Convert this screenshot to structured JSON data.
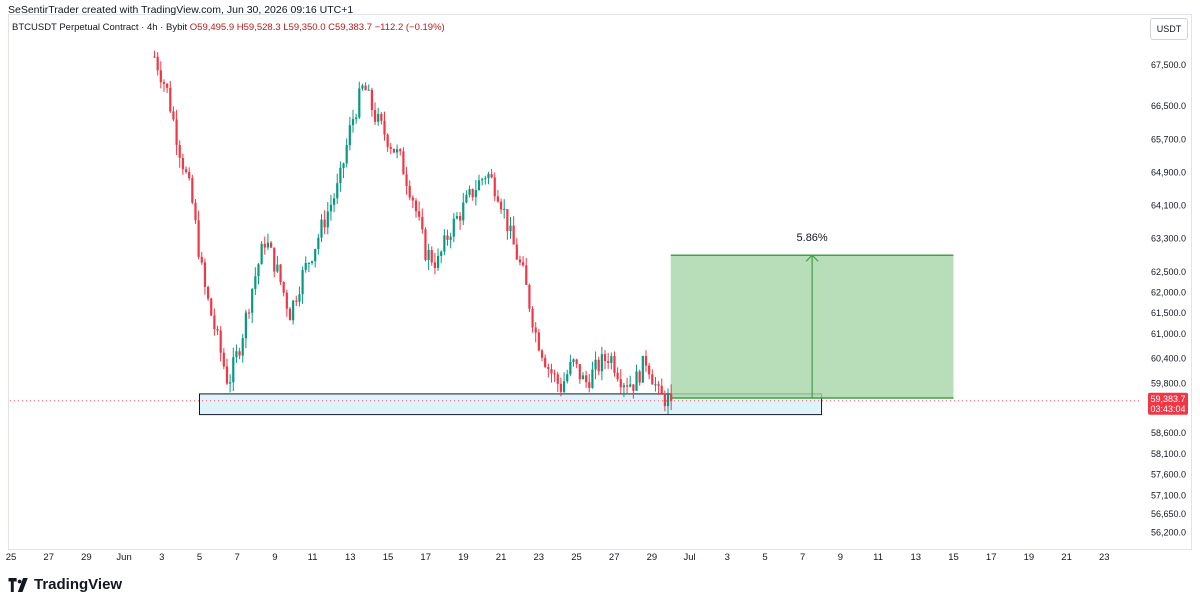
{
  "header": {
    "credit": "SeSentirTrader created with TradingView.com, Jun 30, 2026 09:16 UTC+1"
  },
  "legend": {
    "symbol": "BTCUSDT Perpetual Contract · 4h · Bybit",
    "ohlc": "O59,495.9  H59,528.3  L59,350.0  C59,383.7  −112.2 (−0.19%)"
  },
  "currency_button": "USDT",
  "footer": {
    "brand": "TradingView",
    "logo_icon": "tradingview-logo-icon"
  },
  "colors": {
    "up": "#089981",
    "down": "#f23645",
    "target_fill": "#a5d6a7",
    "target_line": "#43a047",
    "zone_fill": "#dff3fb",
    "zone_border": "#131722",
    "price_label": "#f23645"
  },
  "chart_data": {
    "type": "candlestick",
    "y_axis": {
      "labels": [
        "67,500.0",
        "66,500.0",
        "65,700.0",
        "64,900.0",
        "64,100.0",
        "63,300.0",
        "62,500.0",
        "62,000.0",
        "61,500.0",
        "61,000.0",
        "60,400.0",
        "59,800.0",
        "58,600.0",
        "58,100.0",
        "57,600.0",
        "57,100.0",
        "56,650.0",
        "56,200.0"
      ],
      "values": [
        67500,
        66500,
        65700,
        64900,
        64100,
        63300,
        62500,
        62000,
        61500,
        61000,
        60400,
        59800,
        58600,
        58100,
        57600,
        57100,
        56650,
        56200
      ],
      "range": [
        55900,
        68100
      ]
    },
    "x_axis": {
      "labels": [
        "25",
        "27",
        "29",
        "Jun",
        "3",
        "5",
        "7",
        "9",
        "11",
        "13",
        "15",
        "17",
        "19",
        "21",
        "23",
        "25",
        "27",
        "29",
        "Jul",
        "3",
        "5",
        "7",
        "9",
        "11",
        "13",
        "15",
        "17",
        "19",
        "21",
        "23"
      ]
    },
    "last_price": {
      "value": 59383.7,
      "label": "59,383.7",
      "countdown": "03:43:04"
    },
    "demand_zone": {
      "top": 59550,
      "bottom": 59050,
      "x_start": "Jun 5",
      "x_end": "Jul 8"
    },
    "target_box": {
      "top": 62900,
      "bottom": 59450,
      "x_start": "Jun 30",
      "x_end": "Jul 15",
      "label": "5.86%"
    },
    "series_path": [
      67700,
      66900,
      65500,
      64300,
      62200,
      61000,
      59800,
      60800,
      62200,
      63300,
      62500,
      61500,
      62400,
      63100,
      63900,
      64600,
      66100,
      67000,
      66200,
      65700,
      65200,
      64300,
      63000,
      62700,
      63500,
      64000,
      64500,
      64900,
      64400,
      63300,
      62400,
      61000,
      60200,
      59700,
      60300,
      59800,
      60200,
      60500,
      59900,
      59800,
      60400,
      59500,
      59380
    ]
  }
}
